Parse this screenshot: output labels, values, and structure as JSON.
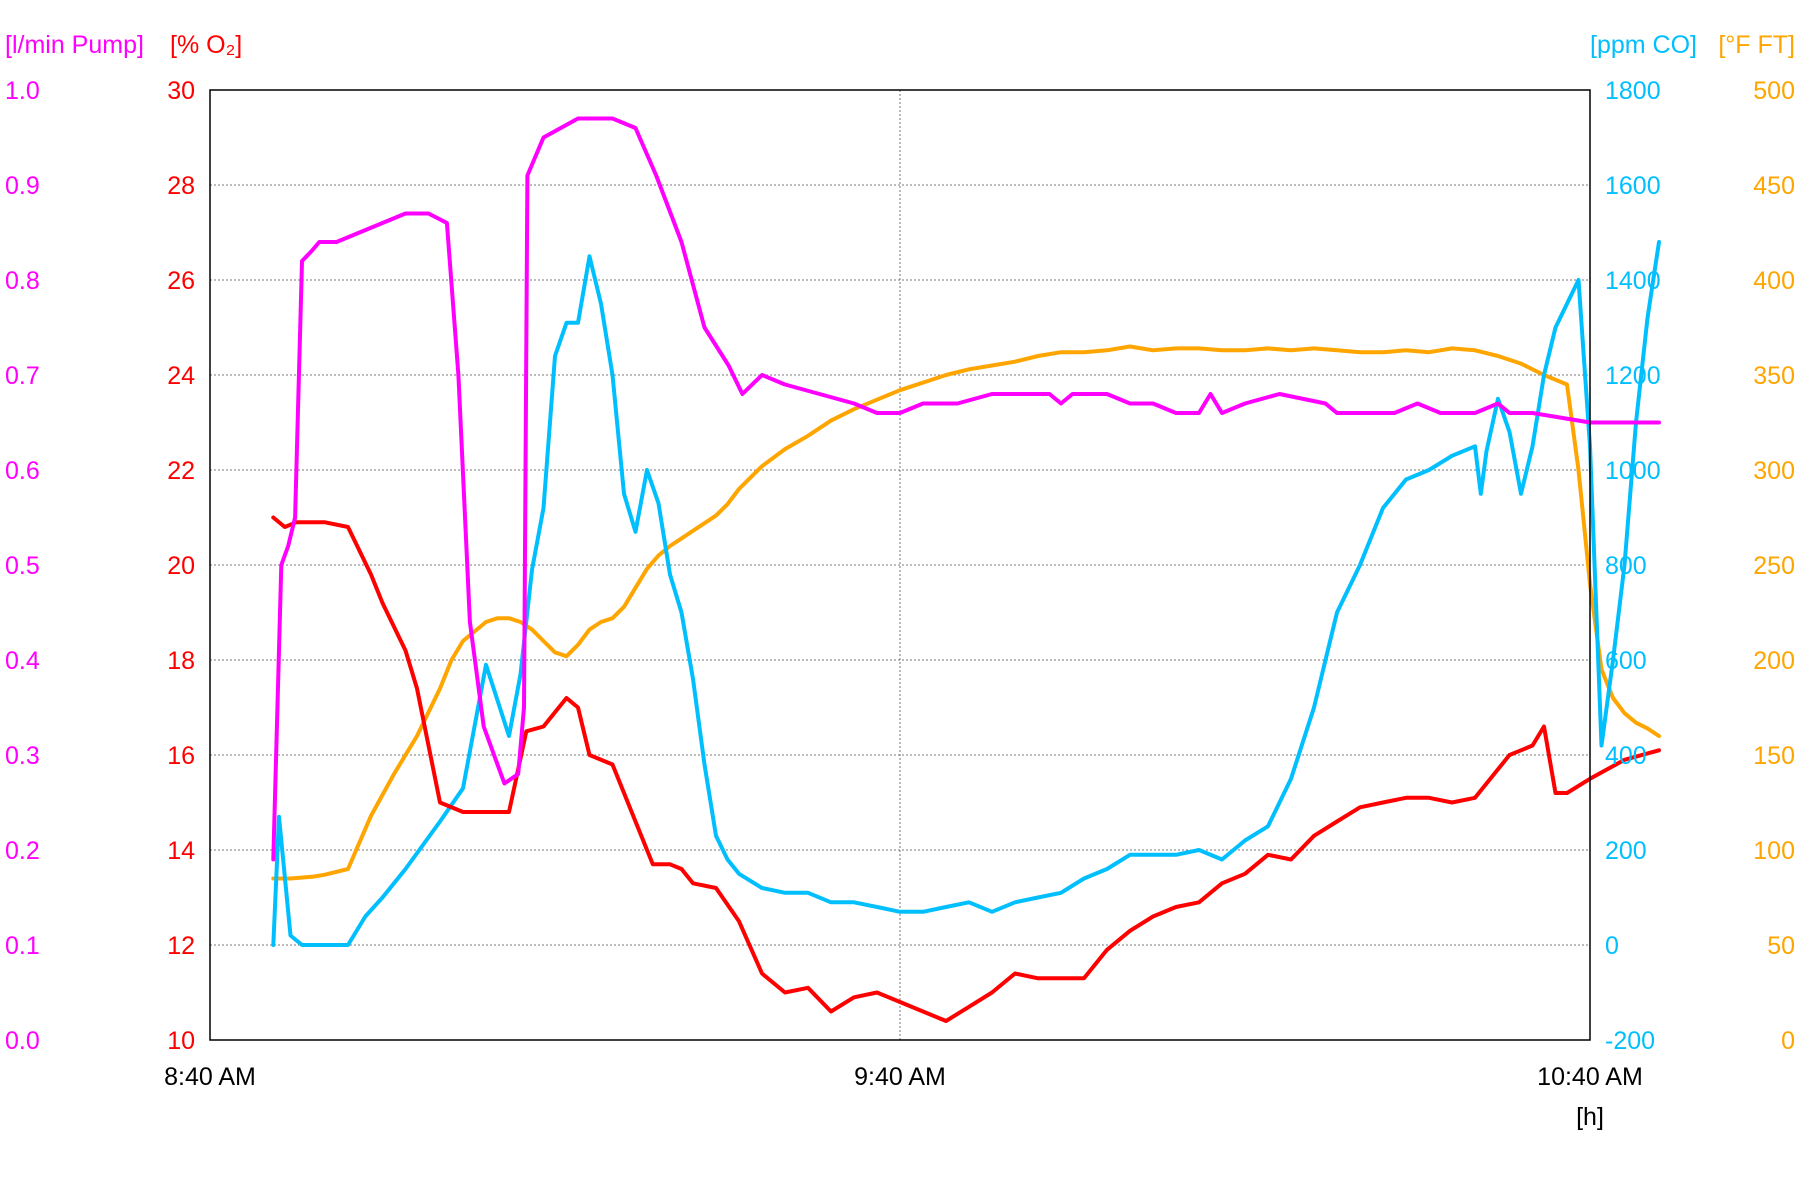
{
  "chart_data": {
    "type": "line",
    "x_unit_label": "[h]",
    "x_ticks": [
      "8:40 AM",
      "9:40 AM",
      "10:40 AM"
    ],
    "grid": true,
    "axes": {
      "pump": {
        "label": "[l/min Pump]",
        "color": "#ff00ff",
        "min": 0,
        "max": 1,
        "ticks": [
          "0.0",
          "0.1",
          "0.2",
          "0.3",
          "0.4",
          "0.5",
          "0.6",
          "0.7",
          "0.8",
          "0.9",
          "1.0"
        ]
      },
      "o2": {
        "label": "[% O₂]",
        "color": "#ff0000",
        "min": 10,
        "max": 30,
        "ticks": [
          "10",
          "12",
          "14",
          "16",
          "18",
          "20",
          "22",
          "24",
          "26",
          "28",
          "30"
        ]
      },
      "co": {
        "label": "[ppm CO]",
        "color": "#00bfff",
        "min": -200,
        "max": 1800,
        "ticks": [
          "-200",
          "0",
          "200",
          "400",
          "600",
          "800",
          "1000",
          "1200",
          "1400",
          "1600",
          "1800"
        ]
      },
      "ft": {
        "label": "[°F FT]",
        "color": "#ffa500",
        "min": 0,
        "max": 500,
        "ticks": [
          "0",
          "50",
          "100",
          "150",
          "200",
          "250",
          "300",
          "350",
          "400",
          "450",
          "500"
        ]
      }
    },
    "x_range_minutes": [
      0,
      120
    ],
    "series": [
      {
        "name": "l/min Pump",
        "axis": "pump",
        "color": "#ff00ff",
        "x": [
          5.5,
          6.2,
          6.8,
          7.4,
          8.0,
          8.8,
          9.5,
          11,
          13,
          15,
          17,
          19,
          20.6,
          21.6,
          22.6,
          23.8,
          25.6,
          26.8,
          27.3,
          27.6,
          29.0,
          32,
          35,
          37,
          38.8,
          41,
          43,
          45.1,
          46.3,
          48,
          50,
          53,
          56,
          58,
          60,
          62,
          63,
          65,
          68,
          71,
          73,
          74,
          75,
          76,
          78,
          80,
          82,
          84,
          86,
          87,
          88,
          90,
          93,
          97,
          98,
          100,
          103,
          105,
          107,
          108,
          109,
          110,
          112,
          113,
          114,
          115,
          120,
          123,
          126
        ],
        "y": [
          0.19,
          0.5,
          0.52,
          0.55,
          0.82,
          0.83,
          0.84,
          0.84,
          0.85,
          0.86,
          0.87,
          0.87,
          0.86,
          0.7,
          0.44,
          0.33,
          0.27,
          0.28,
          0.35,
          0.91,
          0.95,
          0.97,
          0.97,
          0.96,
          0.91,
          0.84,
          0.75,
          0.71,
          0.68,
          0.7,
          0.69,
          0.68,
          0.67,
          0.66,
          0.66,
          0.67,
          0.67,
          0.67,
          0.68,
          0.68,
          0.68,
          0.67,
          0.68,
          0.68,
          0.68,
          0.67,
          0.67,
          0.66,
          0.66,
          0.68,
          0.66,
          0.67,
          0.68,
          0.67,
          0.66,
          0.66,
          0.66,
          0.67,
          0.66,
          0.66,
          0.66,
          0.66,
          0.67,
          0.66,
          0.66,
          0.66,
          0.65,
          0.65,
          0.65
        ]
      },
      {
        "name": "% O₂",
        "axis": "o2",
        "color": "#ff0000",
        "x": [
          5.5,
          6.5,
          7.5,
          10,
          12,
          14,
          15,
          16,
          17,
          18,
          20,
          22,
          24,
          26,
          27.5,
          29,
          30,
          31,
          32,
          33,
          35,
          37,
          38.5,
          40,
          41,
          42,
          44,
          46,
          48,
          50,
          52,
          54,
          56,
          58,
          60,
          62,
          64,
          66,
          68,
          70,
          72,
          74,
          76,
          78,
          80,
          82,
          84,
          86,
          88,
          90,
          92,
          94,
          96,
          98,
          100,
          102,
          104,
          106,
          108,
          110,
          111,
          112,
          113,
          114,
          115,
          116,
          117,
          118,
          120,
          123,
          126
        ],
        "y": [
          21,
          20.8,
          20.9,
          20.9,
          20.8,
          19.8,
          19.2,
          18.7,
          18.2,
          17.4,
          15.0,
          14.8,
          14.8,
          14.8,
          16.5,
          16.6,
          16.9,
          17.2,
          17.0,
          16.0,
          15.8,
          14.6,
          13.7,
          13.7,
          13.6,
          13.3,
          13.2,
          12.5,
          11.4,
          11.0,
          11.1,
          10.6,
          10.9,
          11.0,
          10.8,
          10.6,
          10.4,
          10.7,
          11.0,
          11.4,
          11.3,
          11.3,
          11.3,
          11.9,
          12.3,
          12.6,
          12.8,
          12.9,
          13.3,
          13.5,
          13.9,
          13.8,
          14.3,
          14.6,
          14.9,
          15.0,
          15.1,
          15.1,
          15.0,
          15.1,
          15.4,
          15.7,
          16.0,
          16.1,
          16.2,
          16.6,
          15.2,
          15.2,
          15.5,
          15.9,
          16.1
        ]
      },
      {
        "name": "ppm CO",
        "axis": "co",
        "color": "#00bfff",
        "x": [
          5.5,
          6.0,
          7.0,
          8.0,
          10,
          12,
          13.5,
          15,
          17,
          20,
          22,
          24,
          26,
          27,
          28,
          29,
          30,
          31,
          32,
          33,
          34,
          35,
          36,
          37,
          38,
          39,
          40,
          41,
          42,
          43,
          44,
          45,
          46,
          48,
          50,
          52,
          54,
          56,
          58,
          60,
          62,
          64,
          66,
          68,
          70,
          72,
          74,
          76,
          78,
          80,
          82,
          84,
          86,
          88,
          90,
          92,
          94,
          96,
          98,
          100,
          102,
          104,
          106,
          108,
          110,
          110.5,
          111,
          112,
          113,
          114,
          115,
          116,
          117,
          118,
          119,
          120,
          121,
          122,
          123,
          124,
          125,
          126
        ],
        "y": [
          0,
          270,
          20,
          0,
          0,
          0,
          60,
          100,
          160,
          260,
          330,
          590,
          440,
          570,
          790,
          920,
          1240,
          1310,
          1310,
          1450,
          1350,
          1200,
          950,
          870,
          1000,
          930,
          780,
          700,
          560,
          380,
          230,
          180,
          150,
          120,
          110,
          110,
          90,
          90,
          80,
          70,
          70,
          80,
          90,
          70,
          90,
          100,
          110,
          140,
          160,
          190,
          190,
          190,
          200,
          180,
          220,
          250,
          350,
          500,
          700,
          800,
          920,
          980,
          1000,
          1030,
          1050,
          950,
          1040,
          1150,
          1080,
          950,
          1050,
          1200,
          1300,
          1350,
          1400,
          1050,
          420,
          600,
          800,
          1100,
          1320,
          1480
        ]
      },
      {
        "name": "°F FT",
        "axis": "ft",
        "color": "#ffa500",
        "x": [
          5.5,
          7,
          9,
          10,
          12,
          14,
          16,
          18,
          20,
          21,
          22,
          23,
          24,
          25,
          26,
          27,
          28,
          29,
          30,
          31,
          32,
          33,
          34,
          35,
          36,
          37,
          38,
          39,
          40,
          41,
          42,
          43,
          44,
          45,
          46,
          47,
          48,
          50,
          52,
          54,
          56,
          58,
          60,
          62,
          64,
          66,
          68,
          70,
          72,
          74,
          76,
          78,
          80,
          82,
          84,
          86,
          88,
          90,
          92,
          94,
          96,
          98,
          100,
          102,
          104,
          106,
          108,
          110,
          112,
          114,
          116,
          118,
          119,
          120,
          121,
          122,
          123,
          124,
          125,
          126
        ],
        "y": [
          85,
          85,
          86,
          87,
          90,
          118,
          140,
          160,
          185,
          200,
          210,
          215,
          220,
          222,
          222,
          220,
          216,
          210,
          204,
          202,
          208,
          216,
          220,
          222,
          228,
          238,
          248,
          255,
          260,
          264,
          268,
          272,
          276,
          282,
          290,
          296,
          302,
          311,
          318,
          326,
          332,
          337,
          342,
          346,
          350,
          353,
          355,
          357,
          360,
          362,
          362,
          363,
          365,
          363,
          364,
          364,
          363,
          363,
          364,
          363,
          364,
          363,
          362,
          362,
          363,
          362,
          364,
          363,
          360,
          356,
          350,
          345,
          300,
          240,
          195,
          180,
          172,
          167,
          164,
          160
        ]
      }
    ]
  }
}
